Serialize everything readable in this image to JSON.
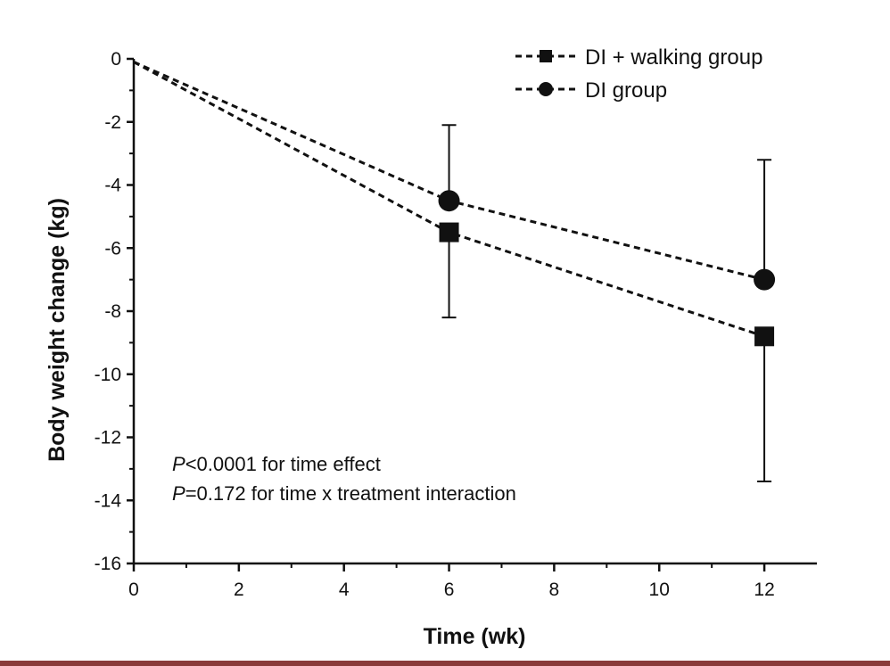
{
  "chart_data": {
    "type": "line",
    "title": "",
    "xlabel": "Time (wk)",
    "ylabel": "Body weight change (kg)",
    "xlim": [
      0,
      13
    ],
    "ylim": [
      -16,
      0
    ],
    "x_ticks": [
      0,
      2,
      4,
      6,
      8,
      10,
      12
    ],
    "y_ticks": [
      0,
      -2,
      -4,
      -6,
      -8,
      -10,
      -12,
      -14,
      -16
    ],
    "x_tick_labels": [
      "0",
      "2",
      "4",
      "6",
      "8",
      "10",
      "12"
    ],
    "y_tick_labels": [
      "0",
      "-2",
      "-4",
      "-6",
      "-8",
      "-10",
      "-12",
      "-14",
      "-16"
    ],
    "grid": false,
    "legend_position": "top-right",
    "series": [
      {
        "name": "DI + walking group",
        "marker": "square",
        "line_style": "dashed",
        "x": [
          0,
          6,
          12
        ],
        "y": [
          -0.1,
          -5.5,
          -8.8
        ],
        "error_low": [
          null,
          -8.2,
          -13.4
        ],
        "error_high": [
          null,
          null,
          null
        ]
      },
      {
        "name": "DI group",
        "marker": "circle",
        "line_style": "dashed",
        "x": [
          0,
          6,
          12
        ],
        "y": [
          -0.1,
          -4.5,
          -7.0
        ],
        "error_low": [
          null,
          null,
          null
        ],
        "error_high": [
          null,
          -2.1,
          -3.2
        ]
      }
    ],
    "annotations": {
      "line1_italic": "P",
      "line1_rest": "<0.0001 for time effect",
      "line2_italic": "P",
      "line2_rest": "=0.172 for time x treatment interaction"
    },
    "colors": {
      "ink": "#111111",
      "background": "#ffffff",
      "bottom_strip": "#8a3a3a"
    }
  }
}
